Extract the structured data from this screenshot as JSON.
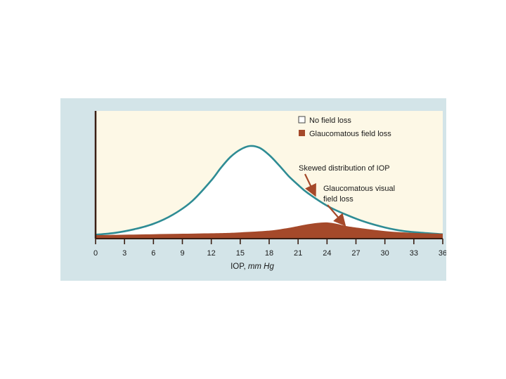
{
  "colors": {
    "background": "#d3e4e8",
    "plot_area": "#fdf8e6",
    "no_loss_curve": "#2e8c94",
    "no_loss_fill": "#ffffff",
    "glaucoma_fill": "#a5492a",
    "axis": "#3a1f14"
  },
  "chart_data": {
    "type": "area",
    "title": "",
    "xlabel": "IOP, mm Hg",
    "xlabel_main": "IOP, ",
    "xlabel_unit": "mm Hg",
    "ylabel": "",
    "xlim": [
      0,
      36
    ],
    "ylim": [
      0,
      1
    ],
    "x_ticks": [
      0,
      3,
      6,
      9,
      12,
      15,
      18,
      21,
      24,
      27,
      30,
      33,
      36
    ],
    "x_tick_labels": [
      "0",
      "3",
      "6",
      "9",
      "12",
      "15",
      "18",
      "21",
      "24",
      "27",
      "30",
      "33",
      "36"
    ],
    "grid": false,
    "legend": {
      "position": "top-right",
      "entries": [
        {
          "label": "No field loss",
          "swatch": "white"
        },
        {
          "label": "Glaucomatous field loss",
          "swatch": "brown"
        }
      ]
    },
    "series": [
      {
        "name": "No field loss",
        "x": [
          0,
          2,
          4,
          6,
          8,
          10,
          12,
          13,
          14,
          15,
          16,
          17,
          18,
          19,
          20,
          21,
          22,
          24,
          26,
          28,
          30,
          32,
          34,
          36
        ],
        "y": [
          0.02,
          0.04,
          0.08,
          0.14,
          0.24,
          0.39,
          0.62,
          0.76,
          0.88,
          0.96,
          1.0,
          0.98,
          0.9,
          0.79,
          0.67,
          0.57,
          0.48,
          0.34,
          0.24,
          0.16,
          0.1,
          0.06,
          0.04,
          0.025
        ]
      },
      {
        "name": "Glaucomatous field loss",
        "x": [
          0,
          6,
          12,
          15,
          18,
          20,
          21,
          22,
          23,
          24,
          25,
          26,
          28,
          30,
          32,
          34,
          36
        ],
        "y": [
          0.0,
          0.01,
          0.02,
          0.03,
          0.05,
          0.08,
          0.1,
          0.12,
          0.135,
          0.14,
          0.125,
          0.1,
          0.07,
          0.045,
          0.03,
          0.02,
          0.015
        ]
      }
    ],
    "annotations": [
      {
        "text": "Skewed distribution of IOP",
        "lines": [
          "Skewed distribution of IOP"
        ],
        "target_x": 22.5,
        "target_series": "No field loss"
      },
      {
        "text": "Glaucomatous visual field loss",
        "lines": [
          "Glaucomatous visual",
          "field loss"
        ],
        "target_x": 25.5,
        "target_series": "Glaucomatous field loss"
      }
    ]
  }
}
